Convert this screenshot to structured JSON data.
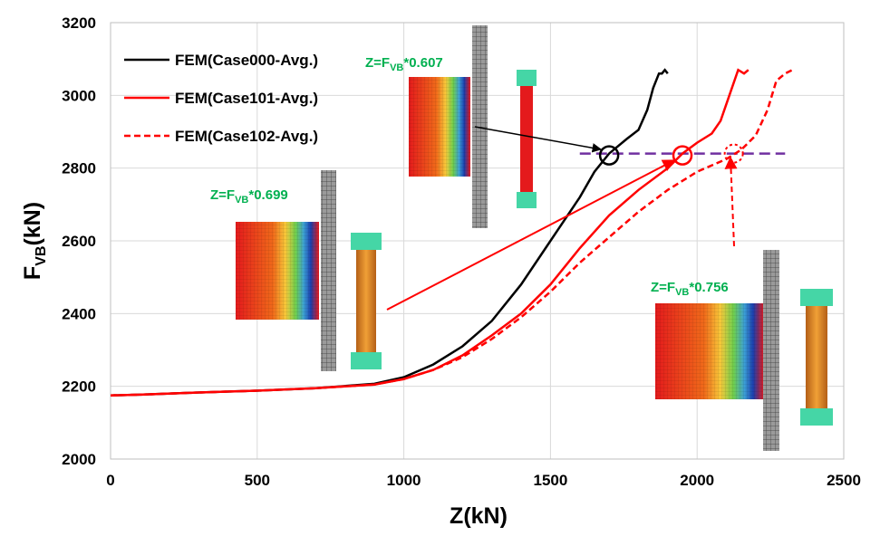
{
  "colors": {
    "black_series": "#000000",
    "red_series": "#ff0000",
    "reference_line": "#7030a0",
    "annotation_text": "#00b050",
    "grid": "#d9d9d9"
  },
  "chart_data": {
    "type": "line",
    "title": "",
    "xlabel": "Z(kN)",
    "ylabel": {
      "main": "F",
      "sub": "VB",
      "unit": "(kN)"
    },
    "xlim": [
      0,
      2500
    ],
    "ylim": [
      2000,
      3200
    ],
    "xticks": [
      0,
      500,
      1000,
      1500,
      2000,
      2500
    ],
    "yticks": [
      2000,
      2200,
      2400,
      2600,
      2800,
      3000,
      3200
    ],
    "grid": true,
    "legend_position": "top-left",
    "series": [
      {
        "name": "FEM(Case000-Avg.)",
        "color": "#000000",
        "dash": "solid",
        "x": [
          0,
          100,
          300,
          500,
          700,
          900,
          1000,
          1100,
          1200,
          1300,
          1400,
          1500,
          1600,
          1650,
          1700,
          1760,
          1800,
          1830,
          1850,
          1870,
          1880,
          1890,
          1900
        ],
        "y": [
          2175,
          2177,
          2183,
          2188,
          2195,
          2207,
          2225,
          2260,
          2310,
          2380,
          2480,
          2600,
          2720,
          2790,
          2840,
          2880,
          2905,
          2960,
          3020,
          3060,
          3060,
          3070,
          3060
        ]
      },
      {
        "name": "FEM(Case101-Avg.)",
        "color": "#ff0000",
        "dash": "solid",
        "x": [
          0,
          100,
          300,
          500,
          700,
          900,
          1000,
          1100,
          1200,
          1300,
          1400,
          1500,
          1600,
          1700,
          1800,
          1900,
          1950,
          2000,
          2050,
          2080,
          2110,
          2140,
          2160,
          2175
        ],
        "y": [
          2175,
          2177,
          2183,
          2188,
          2195,
          2205,
          2220,
          2245,
          2285,
          2340,
          2400,
          2480,
          2580,
          2670,
          2740,
          2800,
          2840,
          2870,
          2895,
          2930,
          3000,
          3070,
          3060,
          3070
        ]
      },
      {
        "name": "FEM(Case102-Avg.)",
        "color": "#ff0000",
        "dash": "dashed",
        "x": [
          0,
          100,
          300,
          500,
          700,
          900,
          1000,
          1100,
          1200,
          1300,
          1400,
          1500,
          1600,
          1700,
          1800,
          1900,
          2000,
          2100,
          2150,
          2200,
          2240,
          2270,
          2300,
          2325
        ],
        "y": [
          2175,
          2177,
          2183,
          2188,
          2195,
          2205,
          2220,
          2245,
          2280,
          2330,
          2390,
          2460,
          2540,
          2610,
          2680,
          2740,
          2790,
          2825,
          2850,
          2890,
          2960,
          3040,
          3060,
          3070
        ]
      }
    ],
    "reference_line": {
      "y": 2840,
      "x_start": 1600,
      "x_end": 2300,
      "style": "dashed",
      "color": "#7030a0"
    },
    "markers": [
      {
        "x": 1700,
        "y": 2835,
        "color": "#000000",
        "style": "solid"
      },
      {
        "x": 1950,
        "y": 2835,
        "color": "#ff0000",
        "style": "solid"
      },
      {
        "x": 2125,
        "y": 2840,
        "color": "#ff0000",
        "style": "dotted"
      }
    ],
    "annotations": [
      {
        "prefix": "Z=F",
        "sub": "VB",
        "suffix": "*0.607",
        "color": "#00b050"
      },
      {
        "prefix": "Z=F",
        "sub": "VB",
        "suffix": "*0.699",
        "color": "#00b050"
      },
      {
        "prefix": "Z=F",
        "sub": "VB",
        "suffix": "*0.756",
        "color": "#00b050"
      }
    ]
  }
}
